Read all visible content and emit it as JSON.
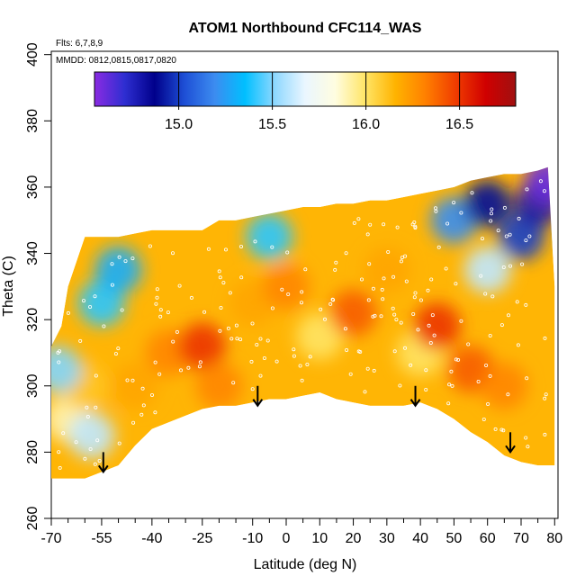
{
  "chart_data": {
    "type": "heatmap",
    "title": "ATOM1 Northbound CFC114_WAS",
    "subtitle_lines": [
      "Flts: 6,7,8,9",
      "MMDD: 0812,0815,0817,0820"
    ],
    "xlabel": "Latitude (deg N)",
    "ylabel": "Theta (C)",
    "xlim": [
      -70,
      81
    ],
    "ylim": [
      260,
      401
    ],
    "x_ticks": [
      -70,
      -55,
      -40,
      -25,
      -10,
      0,
      10,
      20,
      30,
      40,
      50,
      60,
      70,
      80
    ],
    "x_minor_ticks": [
      -65,
      -60,
      -50,
      -45,
      -35,
      -30,
      -20,
      -15,
      -5,
      5,
      15,
      25,
      35,
      45,
      55,
      65,
      75
    ],
    "y_ticks": [
      260,
      280,
      300,
      320,
      340,
      360,
      380,
      400
    ],
    "colorbar": {
      "min": 14.55,
      "max": 16.8,
      "ticks": [
        15.0,
        15.5,
        16.0,
        16.5
      ],
      "colors": [
        "#8a2be2",
        "#2e2ed1",
        "#00008b",
        "#1e50d6",
        "#3c8cf0",
        "#00bfff",
        "#8fd8ff",
        "#eaf6ff",
        "#fffde0",
        "#ffe566",
        "#ffb300",
        "#ff8000",
        "#f03c00",
        "#d00000",
        "#a01010"
      ]
    },
    "series": [
      {
        "name": "Upper boundary (theta, C)",
        "x": [
          -70,
          -67,
          -65,
          -60,
          -55,
          -50,
          -45,
          -40,
          -35,
          -30,
          -25,
          -20,
          -15,
          -10,
          -5,
          0,
          5,
          10,
          15,
          20,
          25,
          30,
          35,
          40,
          45,
          50,
          55,
          60,
          65,
          70,
          75,
          78
        ],
        "values": [
          312,
          318,
          330,
          345,
          345,
          345,
          346,
          347,
          347,
          347,
          347,
          350,
          350,
          351,
          352,
          353,
          354,
          354,
          355,
          355,
          356,
          356,
          357,
          358,
          359,
          360,
          362,
          363,
          364,
          364,
          365,
          366
        ]
      },
      {
        "name": "Lower boundary (theta, C)",
        "x": [
          -70,
          -60,
          -55,
          -50,
          -45,
          -40,
          -35,
          -30,
          -25,
          -20,
          -15,
          -10,
          -5,
          0,
          5,
          10,
          15,
          20,
          25,
          30,
          35,
          40,
          45,
          50,
          55,
          60,
          65,
          70,
          75,
          80
        ],
        "values": [
          272,
          272,
          274,
          276,
          282,
          287,
          289,
          291,
          293,
          294,
          294,
          295,
          296,
          296,
          297,
          298,
          296,
          295,
          294,
          294,
          294,
          295,
          293,
          290,
          286,
          283,
          279,
          277,
          276,
          276
        ]
      },
      {
        "name": "Mixing ratio field (approx. ppt)",
        "points": [
          {
            "x": -65,
            "y": 290,
            "v": 15.9
          },
          {
            "x": -60,
            "y": 300,
            "v": 16.1
          },
          {
            "x": -58,
            "y": 285,
            "v": 15.6
          },
          {
            "x": -55,
            "y": 325,
            "v": 15.4
          },
          {
            "x": -50,
            "y": 335,
            "v": 15.3
          },
          {
            "x": -45,
            "y": 300,
            "v": 16.2
          },
          {
            "x": -35,
            "y": 310,
            "v": 16.3
          },
          {
            "x": -25,
            "y": 312,
            "v": 16.5
          },
          {
            "x": -20,
            "y": 300,
            "v": 16.3
          },
          {
            "x": -10,
            "y": 325,
            "v": 16.2
          },
          {
            "x": 0,
            "y": 330,
            "v": 16.3
          },
          {
            "x": 10,
            "y": 315,
            "v": 16.0
          },
          {
            "x": 20,
            "y": 322,
            "v": 16.4
          },
          {
            "x": 30,
            "y": 335,
            "v": 16.2
          },
          {
            "x": 40,
            "y": 310,
            "v": 16.0
          },
          {
            "x": 45,
            "y": 318,
            "v": 16.5
          },
          {
            "x": 55,
            "y": 305,
            "v": 16.4
          },
          {
            "x": 60,
            "y": 335,
            "v": 15.6
          },
          {
            "x": 65,
            "y": 300,
            "v": 16.3
          },
          {
            "x": 70,
            "y": 345,
            "v": 15.0
          },
          {
            "x": 75,
            "y": 355,
            "v": 14.8
          },
          {
            "x": 78,
            "y": 362,
            "v": 14.6
          },
          {
            "x": -5,
            "y": 345,
            "v": 15.4
          },
          {
            "x": 50,
            "y": 350,
            "v": 15.2
          },
          {
            "x": 60,
            "y": 355,
            "v": 14.9
          },
          {
            "x": -68,
            "y": 305,
            "v": 15.5
          }
        ]
      },
      {
        "name": "Arrows (tropopause markers)",
        "x": [
          -54.5,
          -8.5,
          38.5,
          66.8
        ],
        "values": [
          280,
          300,
          300,
          286
        ]
      }
    ]
  }
}
